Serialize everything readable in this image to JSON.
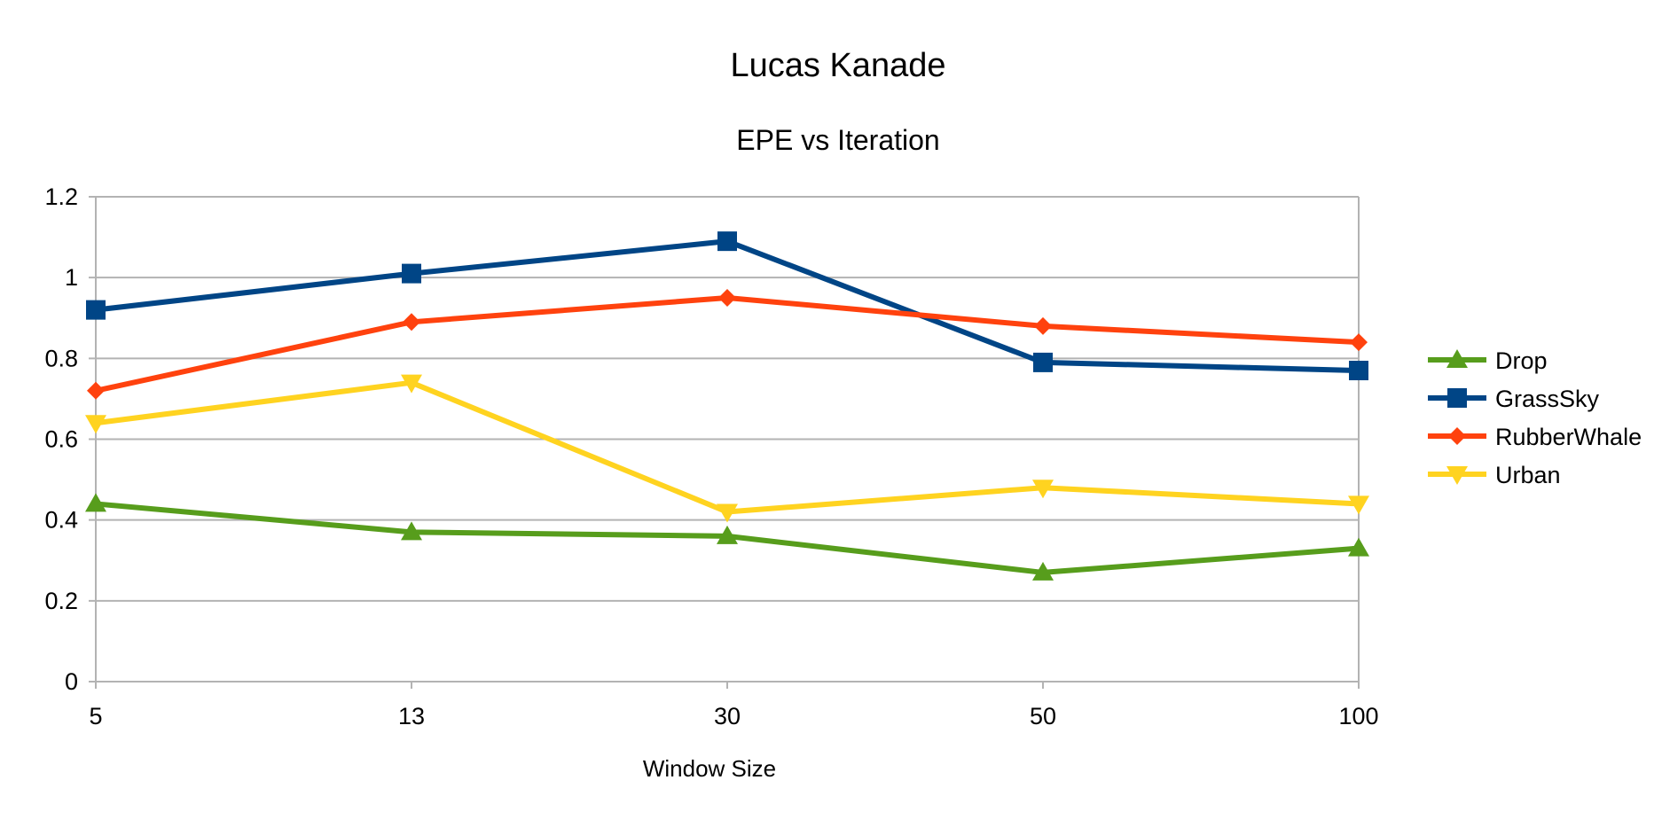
{
  "chart_data": {
    "type": "line",
    "title": "Lucas Kanade",
    "subtitle": "EPE vs Iteration",
    "xlabel": "Window Size",
    "ylabel": "",
    "categories": [
      "5",
      "13",
      "30",
      "50",
      "100"
    ],
    "y_ticks": [
      "0",
      "0.2",
      "0.4",
      "0.6",
      "0.8",
      "1",
      "1.2"
    ],
    "ylim": [
      0,
      1.2
    ],
    "grid": "horizontal",
    "legend_position": "right",
    "series": [
      {
        "name": "Drop",
        "color": "#579d1c",
        "marker": "triangle-up",
        "values": [
          0.44,
          0.37,
          0.36,
          0.27,
          0.33
        ]
      },
      {
        "name": "GrassSky",
        "color": "#004586",
        "marker": "square",
        "values": [
          0.92,
          1.01,
          1.09,
          0.79,
          0.77
        ]
      },
      {
        "name": "RubberWhale",
        "color": "#ff420e",
        "marker": "diamond",
        "values": [
          0.72,
          0.89,
          0.95,
          0.88,
          0.84
        ]
      },
      {
        "name": "Urban",
        "color": "#ffd320",
        "marker": "triangle-down",
        "values": [
          0.64,
          0.74,
          0.42,
          0.48,
          0.44
        ]
      }
    ]
  }
}
